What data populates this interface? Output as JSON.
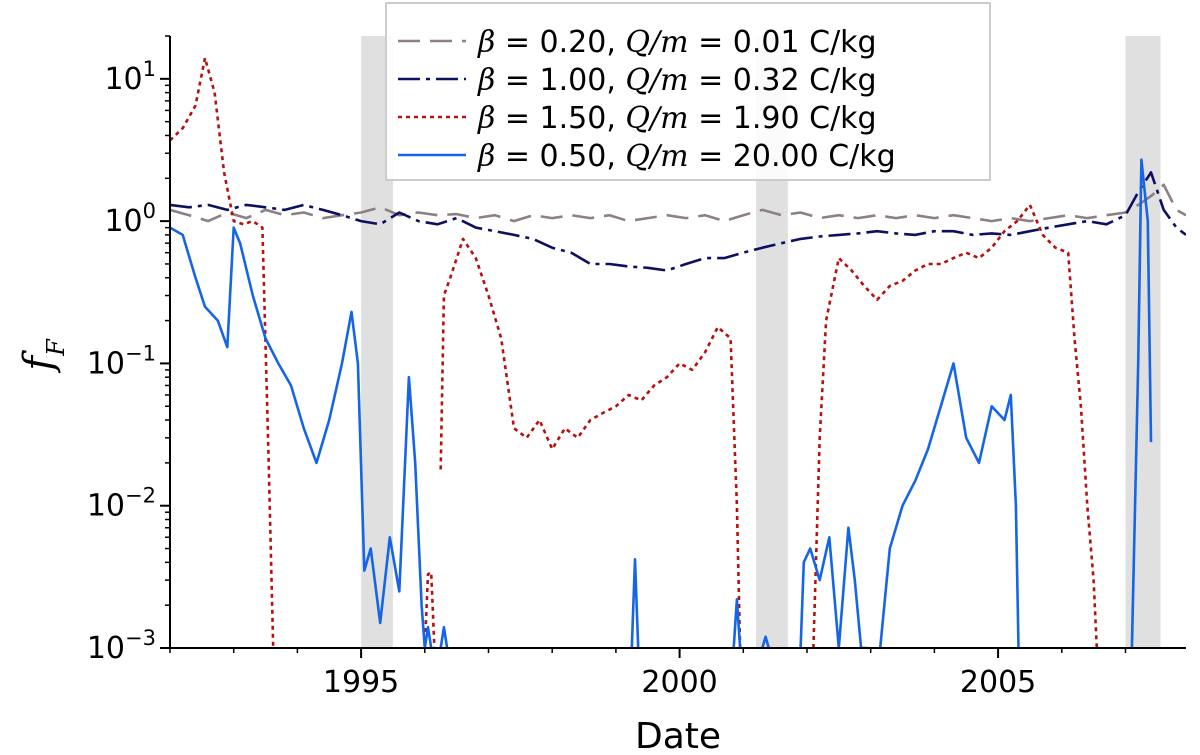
{
  "chart_data": {
    "type": "line",
    "title": "",
    "xlabel": "Date",
    "ylabel_main": "f",
    "ylabel_sub": "F",
    "yscale": "log",
    "xlim": [
      1992.0,
      2007.95
    ],
    "ylim": [
      0.001,
      20
    ],
    "x_ticks": [
      {
        "value": 1995,
        "label": "1995"
      },
      {
        "value": 2000,
        "label": "2000"
      },
      {
        "value": 2005,
        "label": "2005"
      }
    ],
    "y_ticks": [
      {
        "value": 0.001,
        "base": "10",
        "exp": "−3"
      },
      {
        "value": 0.01,
        "base": "10",
        "exp": "−2"
      },
      {
        "value": 0.1,
        "base": "10",
        "exp": "−1"
      },
      {
        "value": 1,
        "base": "10",
        "exp": "0"
      },
      {
        "value": 10,
        "base": "10",
        "exp": "1"
      }
    ],
    "shaded_regions": [
      [
        1995.0,
        1995.5
      ],
      [
        2001.2,
        2001.7
      ],
      [
        2007.0,
        2007.55
      ]
    ],
    "shade_color": "#e0e0e0",
    "legend_location": "top-center",
    "series": [
      {
        "name": "gray-dashed",
        "legend": {
          "beta_sym": "β",
          "eq1": " = 0.20, ",
          "q_sym": "Q/m",
          "eq2": " = 0.01 C/kg"
        },
        "color": "#8c7f86",
        "dash": "22,10",
        "x": [
          1992.0,
          1992.3,
          1992.6,
          1992.9,
          1993.2,
          1993.5,
          1993.8,
          1994.1,
          1994.4,
          1994.7,
          1995.0,
          1995.3,
          1995.6,
          1995.9,
          1996.2,
          1996.5,
          1996.8,
          1997.1,
          1997.4,
          1997.7,
          1998.0,
          1998.3,
          1998.6,
          1998.9,
          1999.2,
          1999.5,
          1999.8,
          2000.1,
          2000.4,
          2000.7,
          2001.0,
          2001.3,
          2001.6,
          2001.9,
          2002.2,
          2002.5,
          2002.8,
          2003.1,
          2003.4,
          2003.7,
          2004.0,
          2004.3,
          2004.6,
          2004.9,
          2005.2,
          2005.5,
          2005.8,
          2006.1,
          2006.4,
          2006.7,
          2007.0,
          2007.2,
          2007.4,
          2007.6,
          2007.8,
          2007.95
        ],
        "y": [
          1.2,
          1.1,
          1.0,
          1.15,
          1.05,
          1.2,
          1.1,
          1.15,
          1.05,
          1.1,
          1.15,
          1.25,
          1.1,
          1.15,
          1.1,
          1.12,
          1.05,
          1.1,
          1.0,
          1.1,
          1.05,
          1.1,
          1.05,
          1.1,
          1.0,
          1.05,
          1.1,
          1.05,
          1.1,
          1.0,
          1.1,
          1.2,
          1.1,
          1.15,
          1.05,
          1.1,
          1.05,
          1.1,
          1.05,
          1.1,
          1.05,
          1.1,
          1.05,
          1.0,
          1.05,
          1.0,
          1.05,
          1.1,
          1.05,
          1.1,
          1.15,
          1.3,
          1.5,
          1.8,
          1.2,
          1.1
        ]
      },
      {
        "name": "navy-dashdot",
        "legend": {
          "beta_sym": "β",
          "eq1": " = 1.00, ",
          "q_sym": "Q/m",
          "eq2": " = 0.32 C/kg"
        },
        "color": "#0d1060",
        "dash": "22,6,4,6",
        "x": [
          1992.0,
          1992.3,
          1992.6,
          1992.9,
          1993.2,
          1993.5,
          1993.8,
          1994.1,
          1994.4,
          1994.7,
          1995.0,
          1995.3,
          1995.6,
          1995.9,
          1996.2,
          1996.5,
          1996.8,
          1997.1,
          1997.4,
          1997.7,
          1998.0,
          1998.3,
          1998.6,
          1998.9,
          1999.2,
          1999.5,
          1999.8,
          2000.1,
          2000.4,
          2000.7,
          2001.0,
          2001.3,
          2001.6,
          2001.9,
          2002.2,
          2002.5,
          2002.8,
          2003.1,
          2003.4,
          2003.7,
          2004.0,
          2004.3,
          2004.6,
          2004.9,
          2005.2,
          2005.5,
          2005.8,
          2006.1,
          2006.4,
          2006.7,
          2007.0,
          2007.2,
          2007.4,
          2007.6,
          2007.8,
          2007.95
        ],
        "y": [
          1.3,
          1.25,
          1.3,
          1.2,
          1.3,
          1.25,
          1.2,
          1.3,
          1.2,
          1.1,
          1.0,
          0.95,
          1.15,
          1.0,
          0.95,
          1.05,
          0.9,
          0.85,
          0.8,
          0.75,
          0.65,
          0.6,
          0.5,
          0.5,
          0.48,
          0.47,
          0.45,
          0.5,
          0.55,
          0.55,
          0.6,
          0.65,
          0.7,
          0.75,
          0.78,
          0.8,
          0.82,
          0.85,
          0.82,
          0.8,
          0.85,
          0.85,
          0.8,
          0.82,
          0.8,
          0.85,
          0.9,
          0.95,
          1.0,
          0.95,
          1.1,
          1.6,
          2.2,
          1.2,
          0.9,
          0.8
        ]
      },
      {
        "name": "red-dotted",
        "legend": {
          "beta_sym": "β",
          "eq1": " = 1.50, ",
          "q_sym": "Q/m",
          "eq2": " = 1.90 C/kg"
        },
        "color": "#b5120f",
        "dash": "4,4",
        "segments": [
          {
            "x": [
              1992.0,
              1992.2,
              1992.4,
              1992.55,
              1992.7,
              1992.85,
              1993.0,
              1993.15,
              1993.3,
              1993.45,
              1993.55,
              1993.62
            ],
            "y": [
              3.7,
              4.5,
              6.5,
              14.0,
              8.0,
              2.2,
              1.0,
              0.95,
              1.0,
              0.9,
              0.02,
              0.001
            ]
          },
          {
            "x": [
              1996.0,
              1996.05,
              1996.1,
              1996.15
            ],
            "y": [
              0.001,
              0.0033,
              0.0034,
              0.001
            ]
          },
          {
            "x": [
              1996.25,
              1996.3,
              1996.4,
              1996.6,
              1996.8,
              1997.0,
              1997.2,
              1997.4,
              1997.6,
              1997.8,
              1998.0,
              1998.2,
              1998.4,
              1998.6,
              1998.8,
              1999.0,
              1999.2,
              1999.4,
              1999.6,
              1999.8,
              2000.0,
              2000.2,
              2000.4,
              2000.6,
              2000.8,
              2000.9,
              2000.95
            ],
            "y": [
              0.018,
              0.3,
              0.4,
              0.75,
              0.55,
              0.3,
              0.15,
              0.035,
              0.03,
              0.04,
              0.025,
              0.035,
              0.03,
              0.04,
              0.045,
              0.05,
              0.06,
              0.055,
              0.07,
              0.08,
              0.1,
              0.09,
              0.12,
              0.18,
              0.15,
              0.01,
              0.001
            ]
          },
          {
            "x": [
              2002.1,
              2002.2,
              2002.3,
              2002.5,
              2002.7,
              2002.9,
              2003.1,
              2003.3,
              2003.5,
              2003.7,
              2003.9,
              2004.1,
              2004.3,
              2004.5,
              2004.7,
              2004.9,
              2005.1,
              2005.3,
              2005.5,
              2005.7,
              2005.9,
              2006.1,
              2006.2,
              2006.3,
              2006.4,
              2006.5,
              2006.55
            ],
            "y": [
              0.001,
              0.03,
              0.2,
              0.55,
              0.45,
              0.35,
              0.28,
              0.35,
              0.38,
              0.45,
              0.5,
              0.5,
              0.55,
              0.6,
              0.55,
              0.65,
              0.85,
              1.0,
              1.3,
              0.8,
              0.65,
              0.6,
              0.15,
              0.05,
              0.01,
              0.003,
              0.001
            ]
          }
        ]
      },
      {
        "name": "blue-solid",
        "legend": {
          "beta_sym": "β",
          "eq1": " = 0.50, ",
          "q_sym": "Q/m",
          "eq2": " = 20.00 C/kg"
        },
        "color": "#1565e6",
        "dash": "",
        "segments": [
          {
            "x": [
              1992.0,
              1992.2,
              1992.4,
              1992.55,
              1992.75,
              1992.9,
              1993.0,
              1993.1,
              1993.3,
              1993.5,
              1993.7,
              1993.9,
              1994.1,
              1994.3,
              1994.5,
              1994.7,
              1994.85,
              1994.95,
              1995.05,
              1995.15,
              1995.3,
              1995.45,
              1995.6,
              1995.75,
              1995.85,
              1995.95,
              1996.0
            ],
            "y": [
              0.9,
              0.8,
              0.4,
              0.25,
              0.2,
              0.13,
              0.9,
              0.7,
              0.3,
              0.15,
              0.1,
              0.07,
              0.035,
              0.02,
              0.04,
              0.1,
              0.23,
              0.1,
              0.0035,
              0.005,
              0.0015,
              0.006,
              0.0025,
              0.08,
              0.02,
              0.002,
              0.001
            ]
          },
          {
            "x": [
              1996.0,
              1996.05,
              1996.1
            ],
            "y": [
              0.001,
              0.0014,
              0.001
            ]
          },
          {
            "x": [
              1996.25,
              1996.3,
              1996.35
            ],
            "y": [
              0.001,
              0.0014,
              0.001
            ]
          },
          {
            "x": [
              1999.25,
              1999.3,
              1999.35
            ],
            "y": [
              0.001,
              0.0042,
              0.001
            ]
          },
          {
            "x": [
              2000.85,
              2000.9,
              2000.95
            ],
            "y": [
              0.001,
              0.0022,
              0.001
            ]
          },
          {
            "x": [
              2001.3,
              2001.35,
              2001.4
            ],
            "y": [
              0.001,
              0.0012,
              0.001
            ]
          },
          {
            "x": [
              2001.9,
              2001.95,
              2002.05,
              2002.2,
              2002.35,
              2002.5,
              2002.65,
              2002.75,
              2002.85,
              2002.95
            ],
            "y": [
              0.001,
              0.004,
              0.005,
              0.003,
              0.006,
              0.001,
              0.007,
              0.003,
              0.001,
              0.001
            ]
          },
          {
            "x": [
              2003.15,
              2003.3,
              2003.5,
              2003.7,
              2003.9,
              2004.1,
              2004.3,
              2004.5,
              2004.7,
              2004.9,
              2005.1,
              2005.2,
              2005.28,
              2005.32
            ],
            "y": [
              0.001,
              0.005,
              0.01,
              0.015,
              0.025,
              0.05,
              0.1,
              0.03,
              0.02,
              0.05,
              0.04,
              0.06,
              0.01,
              0.001
            ]
          },
          {
            "x": [
              2007.1,
              2007.2,
              2007.25,
              2007.35,
              2007.4
            ],
            "y": [
              0.001,
              0.1,
              2.7,
              1.0,
              0.028
            ]
          }
        ]
      }
    ]
  }
}
